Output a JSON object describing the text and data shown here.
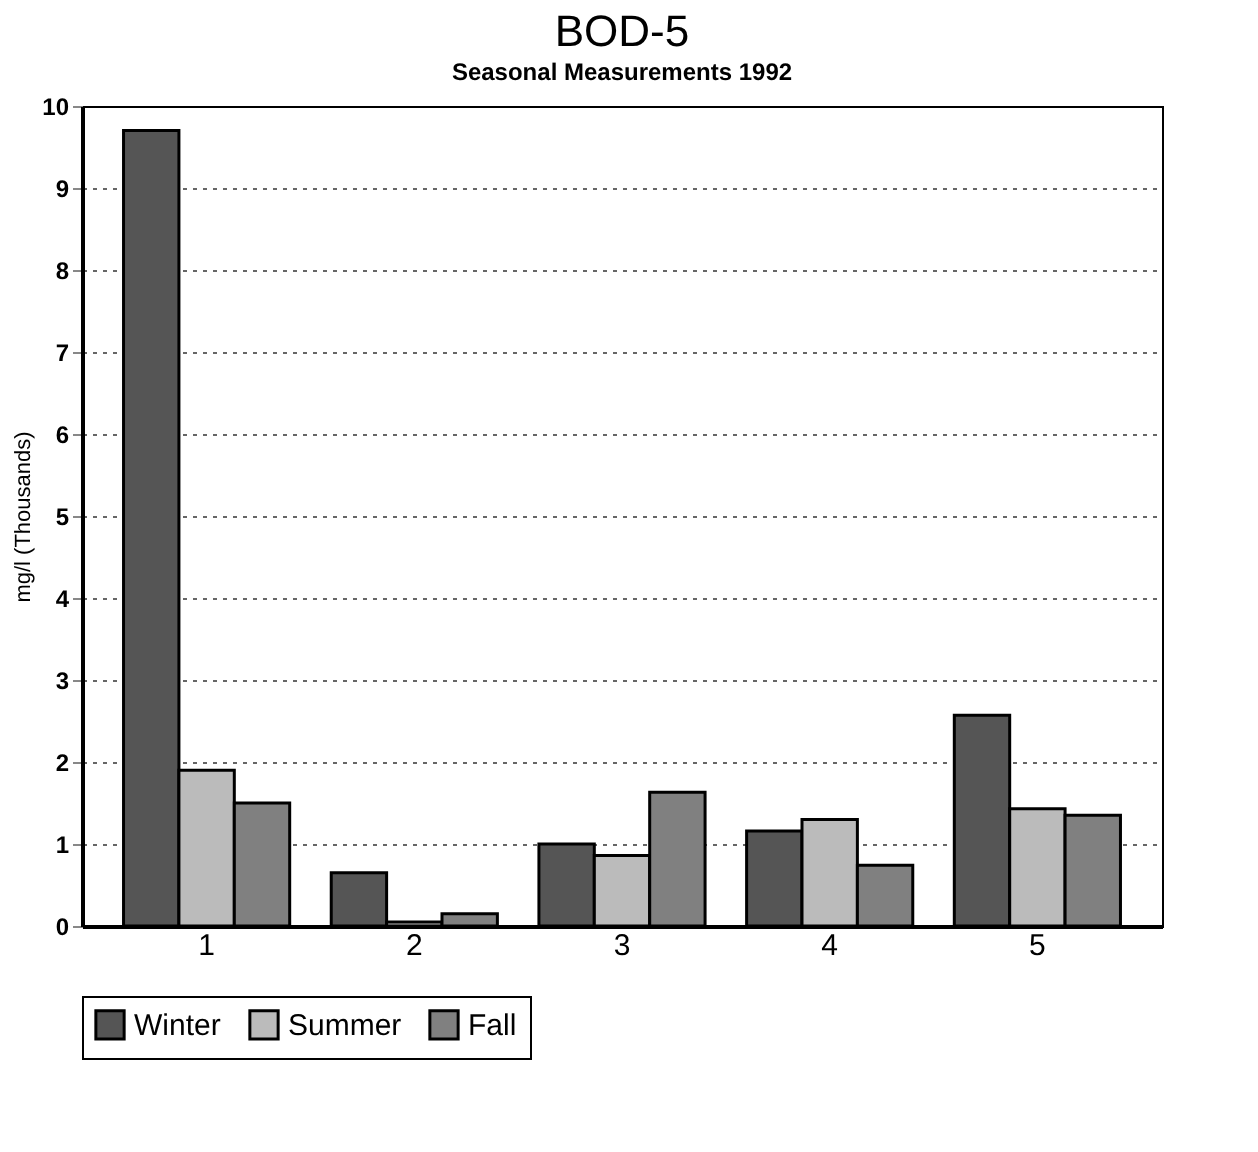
{
  "chart_data": {
    "type": "bar",
    "title": "BOD-5",
    "subtitle": "Seasonal Measurements 1992",
    "ylabel": "mg/l (Thousands)",
    "categories": [
      "1",
      "2",
      "3",
      "4",
      "5"
    ],
    "series": [
      {
        "name": "Winter",
        "color": "#555555",
        "values": [
          9.7,
          0.65,
          1.0,
          1.16,
          2.57
        ]
      },
      {
        "name": "Summer",
        "color": "#bbbbbb",
        "values": [
          1.9,
          0.05,
          0.86,
          1.3,
          1.43
        ]
      },
      {
        "name": "Fall",
        "color": "#808080",
        "values": [
          1.5,
          0.15,
          1.63,
          0.74,
          1.35
        ]
      }
    ],
    "ylim": [
      0,
      10
    ],
    "yticks": [
      0,
      1,
      2,
      3,
      4,
      5,
      6,
      7,
      8,
      9,
      10
    ],
    "grid": "y",
    "legend": "bottom"
  }
}
